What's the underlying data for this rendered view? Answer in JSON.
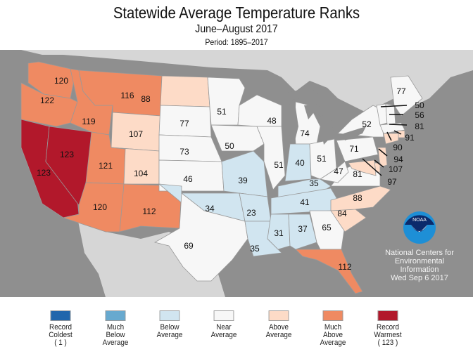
{
  "header": {
    "title": "Statewide Average Temperature Ranks",
    "subtitle": "June–August 2017",
    "period": "Period: 1895–2017"
  },
  "colors": {
    "record_coldest": "#2166ac",
    "much_below": "#67a9cf",
    "below": "#d1e5f0",
    "near": "#f7f7f7",
    "above": "#fddbc7",
    "much_above": "#ef8a62",
    "record_warmest": "#b2182b",
    "ocean": "#8f8f8f",
    "land": "#d6d6d6"
  },
  "states": [
    {
      "abbr": "WA",
      "rank": "120",
      "cat": "much_above"
    },
    {
      "abbr": "OR",
      "rank": "122",
      "cat": "much_above"
    },
    {
      "abbr": "CA",
      "rank": "123",
      "cat": "record_warmest"
    },
    {
      "abbr": "NV",
      "rank": "123",
      "cat": "record_warmest"
    },
    {
      "abbr": "ID",
      "rank": "119",
      "cat": "much_above"
    },
    {
      "abbr": "MT",
      "rank": "116",
      "cat": "much_above"
    },
    {
      "abbr": "WY",
      "rank": "107",
      "cat": "above"
    },
    {
      "abbr": "UT",
      "rank": "121",
      "cat": "much_above"
    },
    {
      "abbr": "AZ",
      "rank": "120",
      "cat": "much_above"
    },
    {
      "abbr": "CO",
      "rank": "104",
      "cat": "above"
    },
    {
      "abbr": "NM",
      "rank": "112",
      "cat": "much_above"
    },
    {
      "abbr": "ND",
      "rank": "88",
      "cat": "above"
    },
    {
      "abbr": "SD",
      "rank": "77",
      "cat": "near"
    },
    {
      "abbr": "NE",
      "rank": "73",
      "cat": "near"
    },
    {
      "abbr": "KS",
      "rank": "46",
      "cat": "near"
    },
    {
      "abbr": "OK",
      "rank": "34",
      "cat": "below"
    },
    {
      "abbr": "TX",
      "rank": "69",
      "cat": "near"
    },
    {
      "abbr": "MN",
      "rank": "51",
      "cat": "near"
    },
    {
      "abbr": "IA",
      "rank": "50",
      "cat": "near"
    },
    {
      "abbr": "MO",
      "rank": "39",
      "cat": "below"
    },
    {
      "abbr": "AR",
      "rank": "23",
      "cat": "below"
    },
    {
      "abbr": "LA",
      "rank": "35",
      "cat": "below"
    },
    {
      "abbr": "WI",
      "rank": "48",
      "cat": "near"
    },
    {
      "abbr": "IL",
      "rank": "51",
      "cat": "near"
    },
    {
      "abbr": "MI",
      "rank": "74",
      "cat": "near"
    },
    {
      "abbr": "IN",
      "rank": "40",
      "cat": "below"
    },
    {
      "abbr": "OH",
      "rank": "51",
      "cat": "near"
    },
    {
      "abbr": "KY",
      "rank": "35",
      "cat": "below"
    },
    {
      "abbr": "TN",
      "rank": "41",
      "cat": "below"
    },
    {
      "abbr": "MS",
      "rank": "31",
      "cat": "below"
    },
    {
      "abbr": "AL",
      "rank": "37",
      "cat": "below"
    },
    {
      "abbr": "GA",
      "rank": "65",
      "cat": "near"
    },
    {
      "abbr": "FL",
      "rank": "112",
      "cat": "much_above"
    },
    {
      "abbr": "SC",
      "rank": "84",
      "cat": "above"
    },
    {
      "abbr": "NC",
      "rank": "88",
      "cat": "above"
    },
    {
      "abbr": "VA",
      "rank": "81",
      "cat": "near"
    },
    {
      "abbr": "WV",
      "rank": "47",
      "cat": "near"
    },
    {
      "abbr": "PA",
      "rank": "71",
      "cat": "near"
    },
    {
      "abbr": "NY",
      "rank": "52",
      "cat": "near"
    },
    {
      "abbr": "ME",
      "rank": "77",
      "cat": "near"
    },
    {
      "abbr": "VT",
      "rank": "50",
      "cat": "near"
    },
    {
      "abbr": "NH",
      "rank": "56",
      "cat": "near"
    },
    {
      "abbr": "MA",
      "rank": "81",
      "cat": "near"
    },
    {
      "abbr": "RI",
      "rank": "91",
      "cat": "above"
    },
    {
      "abbr": "CT",
      "rank": "90",
      "cat": "above"
    },
    {
      "abbr": "NJ",
      "rank": "94",
      "cat": "above"
    },
    {
      "abbr": "DE",
      "rank": "107",
      "cat": "above"
    },
    {
      "abbr": "MD",
      "rank": "97",
      "cat": "above"
    }
  ],
  "legend": [
    {
      "key": "record_coldest",
      "lines": [
        "Record",
        "Coldest",
        "( 1 )"
      ]
    },
    {
      "key": "much_below",
      "lines": [
        "Much",
        "Below",
        "Average"
      ]
    },
    {
      "key": "below",
      "lines": [
        "Below",
        "Average",
        ""
      ]
    },
    {
      "key": "near",
      "lines": [
        "Near",
        "Average",
        ""
      ]
    },
    {
      "key": "above",
      "lines": [
        "Above",
        "Average",
        ""
      ]
    },
    {
      "key": "much_above",
      "lines": [
        "Much",
        "Above",
        "Average"
      ]
    },
    {
      "key": "record_warmest",
      "lines": [
        "Record",
        "Warmest",
        "( 123 )"
      ]
    }
  ],
  "credit": {
    "logo_text": "NOAA",
    "line1": "National Centers for",
    "line2": "Environmental",
    "line3": "Information",
    "date": "Wed Sep  6 2017"
  }
}
